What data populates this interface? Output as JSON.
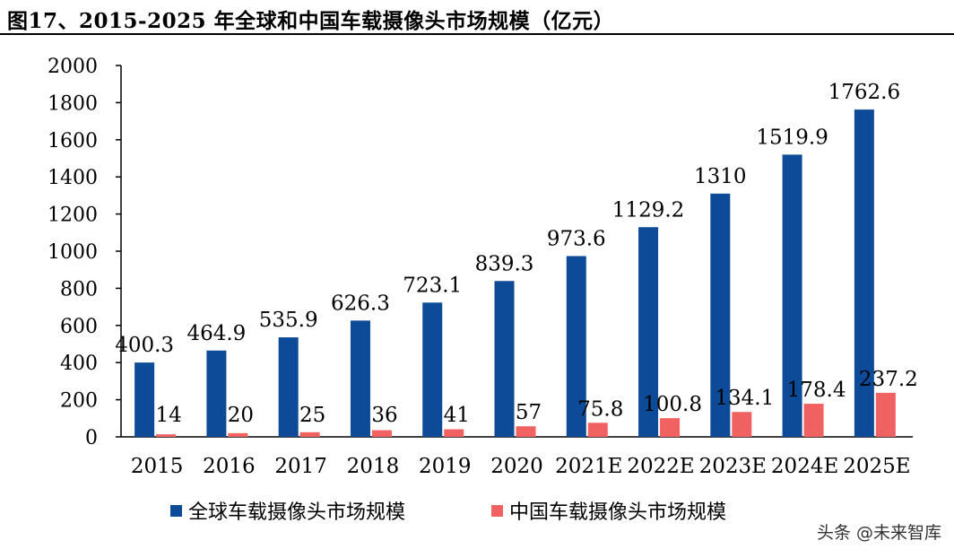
{
  "page": {
    "title": "图17、2015-2025 年全球和中国车载摄像头市场规模（亿元）",
    "watermark": "头条 @未来智库"
  },
  "colors": {
    "global": "#0D4A97",
    "china": "#F06262"
  },
  "chart_data": {
    "type": "bar",
    "title": "图17、2015-2025 年全球和中国车载摄像头市场规模（亿元）",
    "xlabel": "",
    "ylabel": "",
    "ylim": [
      0,
      2000
    ],
    "yticks": [
      "0",
      "200",
      "400",
      "600",
      "800",
      "1000",
      "1200",
      "1400",
      "1600",
      "1800",
      "2000"
    ],
    "categories": [
      "2015",
      "2016",
      "2017",
      "2018",
      "2019",
      "2020",
      "2021E",
      "2022E",
      "2023E",
      "2024E",
      "2025E"
    ],
    "legend_position": "bottom",
    "series": [
      {
        "name": "全球车载摄像头市场规模",
        "values": [
          400.3,
          464.9,
          535.9,
          626.3,
          723.1,
          839.3,
          973.6,
          1129.2,
          1310,
          1519.9,
          1762.6
        ],
        "labels": [
          "400.3",
          "464.9",
          "535.9",
          "626.3",
          "723.1",
          "839.3",
          "973.6",
          "1129.2",
          "1310",
          "1519.9",
          "1762.6"
        ]
      },
      {
        "name": "中国车载摄像头市场规模",
        "values": [
          14,
          20,
          25,
          36,
          41,
          57,
          75.8,
          100.8,
          134.1,
          178.4,
          237.2
        ],
        "labels": [
          "14",
          "20",
          "25",
          "36",
          "41",
          "57",
          "75.8",
          "100.8",
          "134.1",
          "178.4",
          "237.2"
        ]
      }
    ]
  }
}
